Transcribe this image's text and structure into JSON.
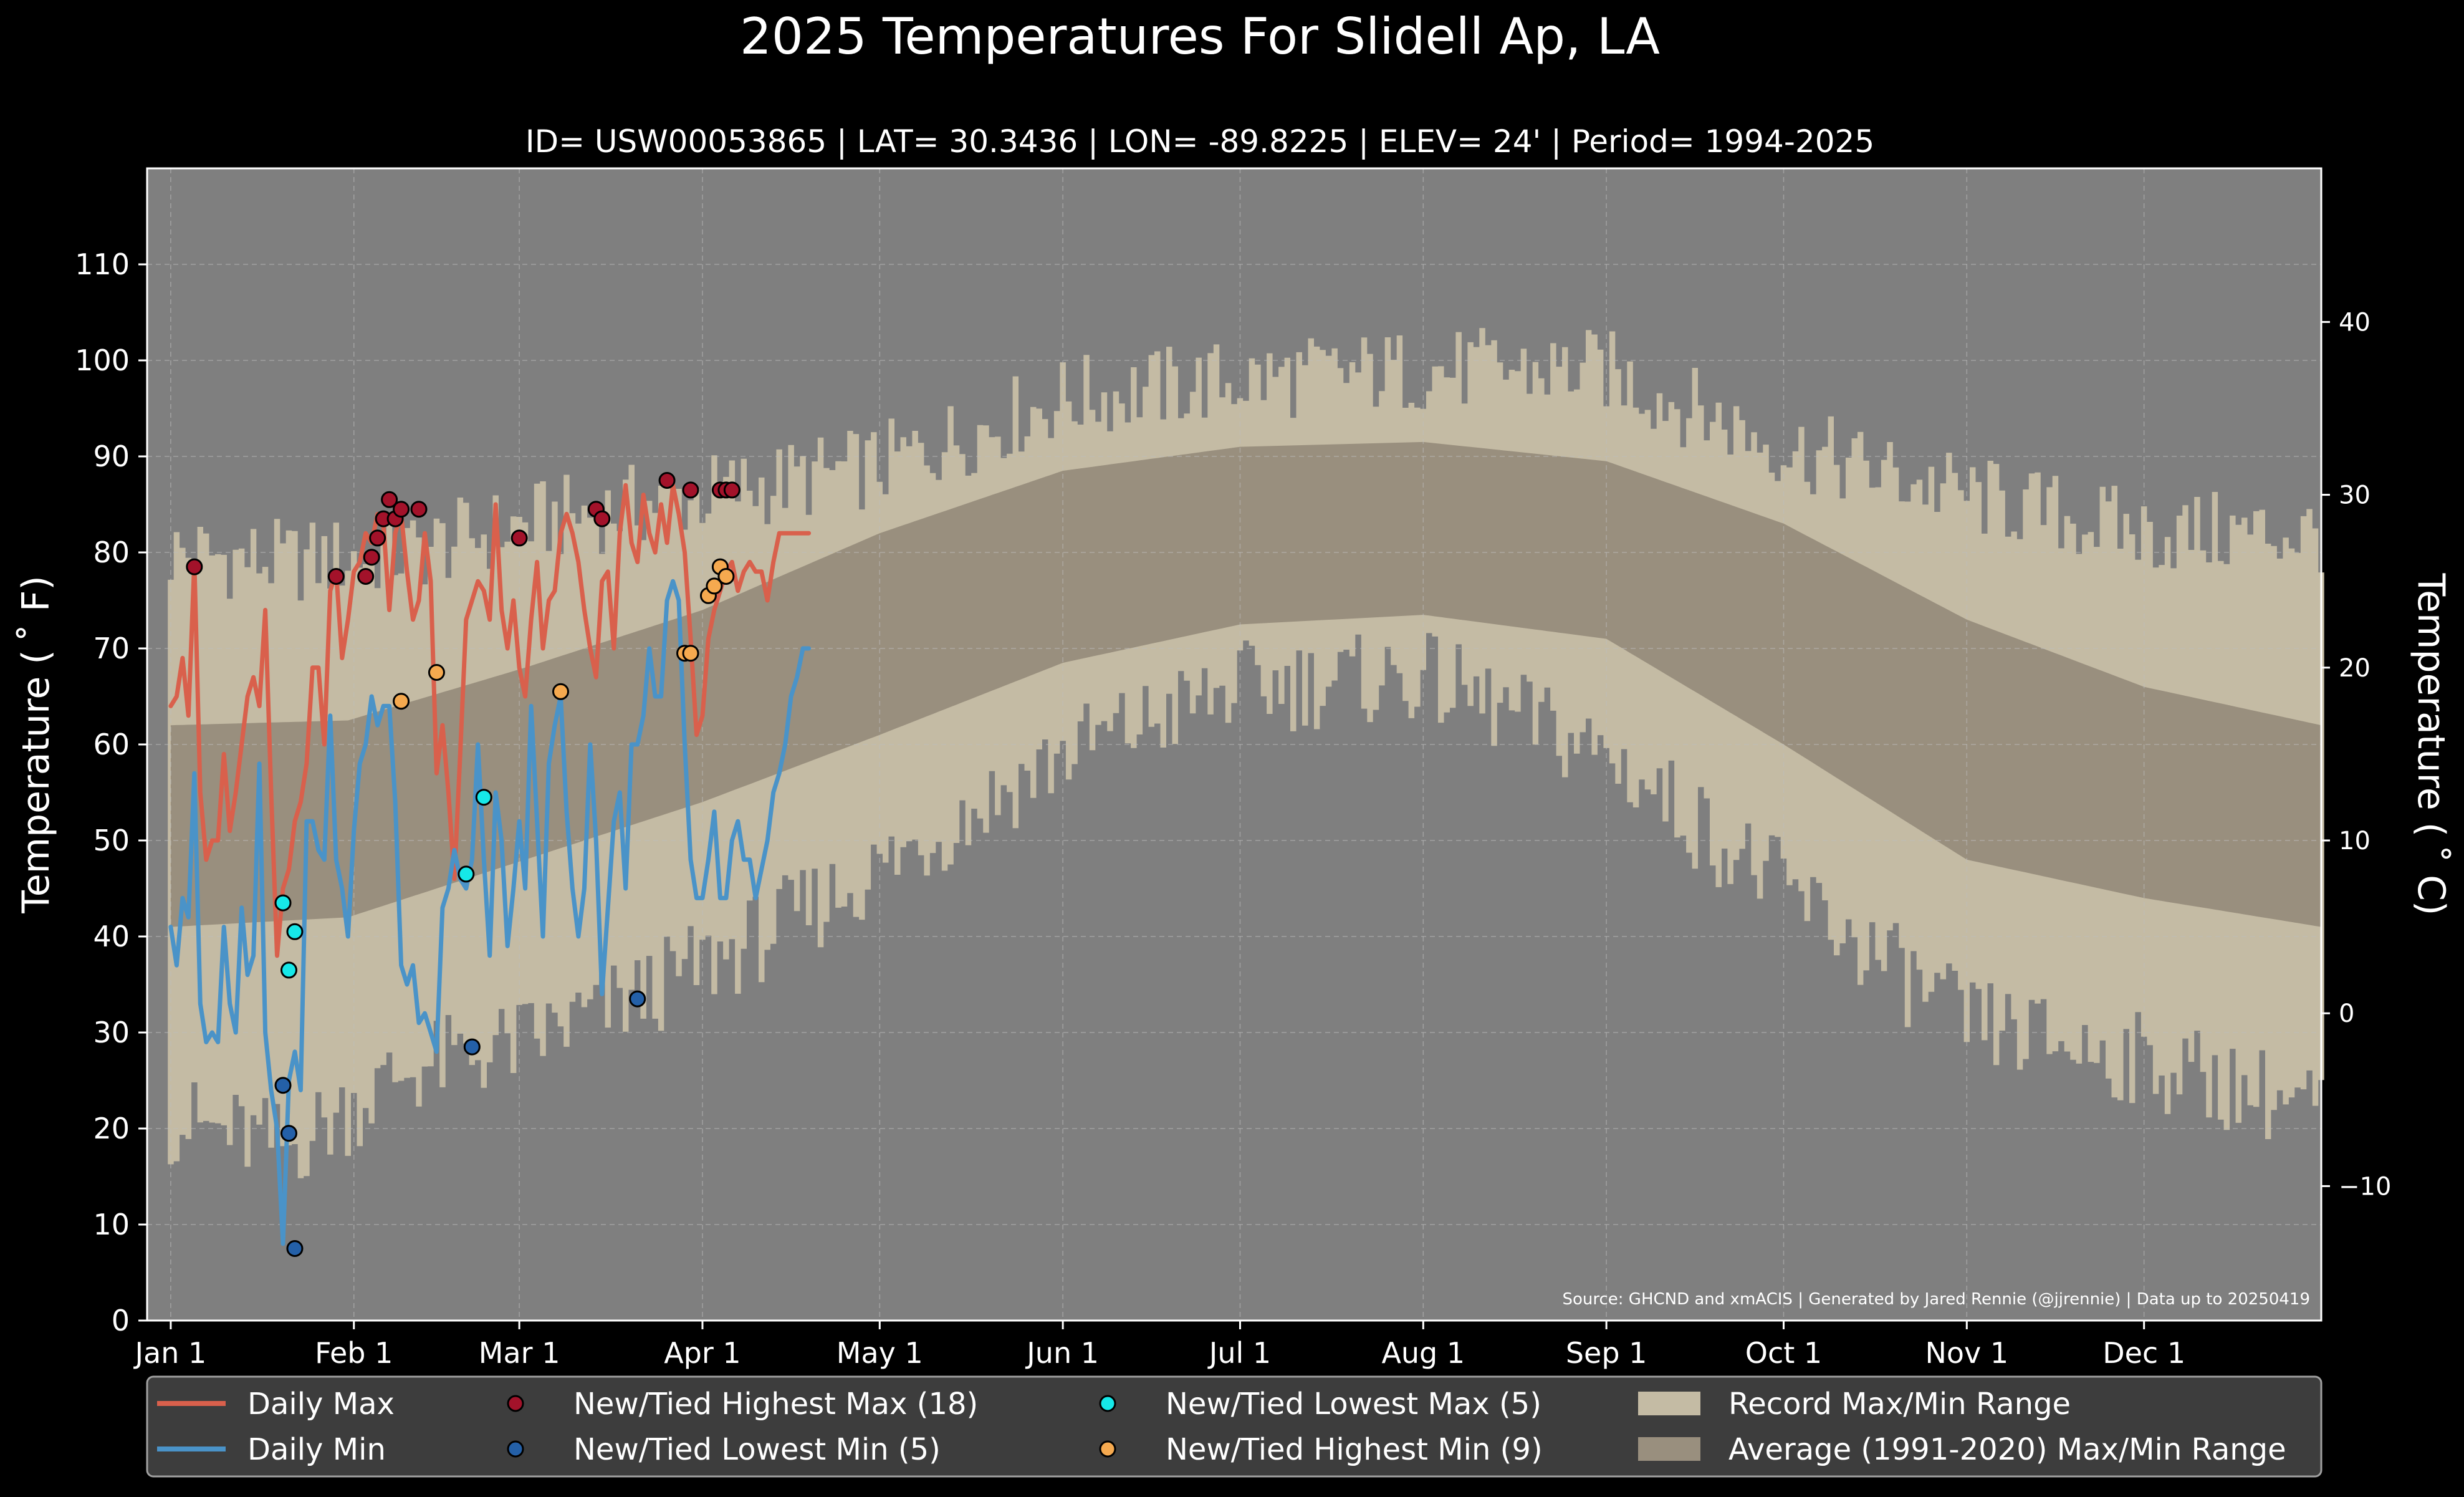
{
  "chart_data": {
    "type": "area",
    "title": "2025 Temperatures For Slidell Ap, LA",
    "subtitle": "ID= USW00053865 | LAT= 30.3436 | LON= -89.8225 | ELEV= 24' | Period= 1994-2025",
    "ylabel": "Temperature ($^\\circ$F)",
    "ylabel_text": "Temperature ( ˚ F)",
    "y2label_text": "Temperature ( ˚ C)",
    "source": "Source: GHCND and xmACIS | Generated by Jared Rennie (@jjrennie) | Data up to 20250419",
    "ylim": [
      0,
      120
    ],
    "y2lim_c": [
      -17.78,
      48.89
    ],
    "yticks": [
      0,
      10,
      20,
      30,
      40,
      50,
      60,
      70,
      80,
      90,
      100,
      110
    ],
    "y2ticks": [
      -10,
      0,
      10,
      20,
      30,
      40
    ],
    "xlim_day": [
      -4,
      364
    ],
    "xticks": [
      {
        "label": "Jan 1",
        "day": 0
      },
      {
        "label": "Feb 1",
        "day": 31
      },
      {
        "label": "Mar 1",
        "day": 59
      },
      {
        "label": "Apr 1",
        "day": 90
      },
      {
        "label": "May 1",
        "day": 120
      },
      {
        "label": "Jun 1",
        "day": 151
      },
      {
        "label": "Jul 1",
        "day": 181
      },
      {
        "label": "Aug 1",
        "day": 212
      },
      {
        "label": "Sep 1",
        "day": 243
      },
      {
        "label": "Oct 1",
        "day": 273
      },
      {
        "label": "Nov 1",
        "day": 304
      },
      {
        "label": "Dec 1",
        "day": 334
      }
    ],
    "grid": true,
    "legend_placement": "below",
    "legend": [
      {
        "label": "Daily Max",
        "kind": "line",
        "color": "#d9604c"
      },
      {
        "label": "Daily Min",
        "kind": "line",
        "color": "#4a93c8"
      },
      {
        "label": "New/Tied Highest Max (18)",
        "kind": "dot",
        "color": "#a3122a"
      },
      {
        "label": "New/Tied Lowest Min (5)",
        "kind": "dot",
        "color": "#2460a8"
      },
      {
        "label": "New/Tied Lowest Max (5)",
        "kind": "dot",
        "color": "#16e8e8"
      },
      {
        "label": "New/Tied Highest Min (9)",
        "kind": "dot",
        "color": "#f5a94f"
      },
      {
        "label": "Record Max/Min Range",
        "kind": "patch",
        "color": "#c4bba4"
      },
      {
        "label": "Average (1991-2020) Max/Min Range",
        "kind": "patch",
        "color": "#998f7e"
      }
    ],
    "colors": {
      "background": "#000000",
      "plot_bg": "#7f7f7f",
      "record": "#c4bba4",
      "normal": "#998f7e",
      "max_line": "#d9604c",
      "min_line": "#4a93c8",
      "legend_bg": "#3d3d3d",
      "text": "#ffffff"
    },
    "record_keypoints": {
      "max_days": [
        0,
        20,
        40,
        60,
        80,
        100,
        120,
        151,
        181,
        212,
        243,
        250,
        273,
        304,
        334,
        364
      ],
      "max_values": [
        80,
        79,
        80,
        83,
        85,
        87,
        89,
        96,
        98,
        99,
        99,
        97,
        91,
        86,
        82,
        82
      ],
      "min_days": [
        0,
        20,
        40,
        60,
        80,
        100,
        120,
        151,
        181,
        212,
        243,
        273,
        304,
        334,
        364
      ],
      "min_values": [
        21,
        18,
        26,
        29,
        34,
        40,
        47,
        59,
        66,
        67,
        59,
        45,
        31,
        27,
        22
      ]
    },
    "normal_keypoints": {
      "max_days": [
        0,
        30,
        60,
        90,
        120,
        151,
        181,
        212,
        243,
        273,
        304,
        334,
        364
      ],
      "max_values": [
        62,
        62.5,
        68,
        74,
        82,
        88.5,
        91,
        91.5,
        89.5,
        83,
        73,
        66,
        62
      ],
      "min_days": [
        0,
        30,
        60,
        90,
        120,
        151,
        181,
        212,
        243,
        273,
        304,
        334,
        364
      ],
      "min_values": [
        41,
        42,
        48,
        54,
        61,
        68.5,
        72.5,
        73.5,
        71,
        60,
        48,
        44,
        41
      ]
    },
    "series": [
      {
        "name": "Daily Max",
        "days": [
          0,
          1,
          2,
          3,
          4,
          5,
          6,
          7,
          8,
          9,
          10,
          11,
          12,
          13,
          14,
          15,
          16,
          17,
          18,
          19,
          20,
          21,
          22,
          23,
          24,
          25,
          26,
          27,
          28,
          29,
          30,
          31,
          32,
          33,
          34,
          35,
          36,
          37,
          38,
          39,
          40,
          41,
          42,
          43,
          44,
          45,
          46,
          47,
          48,
          49,
          50,
          51,
          52,
          53,
          54,
          55,
          56,
          57,
          58,
          59,
          60,
          61,
          62,
          63,
          64,
          65,
          66,
          67,
          68,
          69,
          70,
          71,
          72,
          73,
          74,
          75,
          76,
          77,
          78,
          79,
          80,
          81,
          82,
          83,
          84,
          85,
          86,
          87,
          88,
          89,
          90,
          91,
          92,
          93,
          94,
          95,
          96,
          97,
          98,
          99,
          100,
          101,
          102,
          103,
          104,
          105,
          106,
          107,
          108
        ],
        "values": [
          64,
          65,
          69,
          63,
          79,
          55,
          48,
          50,
          50,
          59,
          51,
          55,
          60,
          65,
          67,
          64,
          74,
          55,
          38,
          45,
          47,
          52,
          54,
          58,
          68,
          68,
          60,
          76,
          78,
          69,
          73,
          78,
          79,
          82,
          81,
          84,
          83,
          74,
          82,
          84,
          78,
          73,
          75,
          82,
          77,
          57,
          62,
          55,
          46,
          59,
          73,
          75,
          77,
          76,
          73,
          85,
          74,
          70,
          75,
          68,
          65,
          73,
          79,
          70,
          75,
          76,
          82,
          84,
          82,
          79,
          74,
          70,
          67,
          77,
          78,
          70,
          82,
          87,
          81,
          79,
          86,
          82,
          80,
          85,
          81,
          87,
          84,
          80,
          71,
          61,
          63,
          71,
          74,
          76,
          78,
          79,
          76,
          78,
          79,
          78,
          78,
          75,
          79,
          82,
          82,
          82,
          82,
          82,
          82
        ]
      },
      {
        "name": "Daily Min",
        "days": [
          0,
          1,
          2,
          3,
          4,
          5,
          6,
          7,
          8,
          9,
          10,
          11,
          12,
          13,
          14,
          15,
          16,
          17,
          18,
          19,
          20,
          21,
          22,
          23,
          24,
          25,
          26,
          27,
          28,
          29,
          30,
          31,
          32,
          33,
          34,
          35,
          36,
          37,
          38,
          39,
          40,
          41,
          42,
          43,
          44,
          45,
          46,
          47,
          48,
          49,
          50,
          51,
          52,
          53,
          54,
          55,
          56,
          57,
          58,
          59,
          60,
          61,
          62,
          63,
          64,
          65,
          66,
          67,
          68,
          69,
          70,
          71,
          72,
          73,
          74,
          75,
          76,
          77,
          78,
          79,
          80,
          81,
          82,
          83,
          84,
          85,
          86,
          87,
          88,
          89,
          90,
          91,
          92,
          93,
          94,
          95,
          96,
          97,
          98,
          99,
          100,
          101,
          102,
          103,
          104,
          105,
          106,
          107,
          108
        ],
        "values": [
          41,
          37,
          44,
          42,
          57,
          33,
          29,
          30,
          29,
          41,
          33,
          30,
          43,
          36,
          38,
          58,
          30,
          24,
          20,
          8,
          25,
          28,
          24,
          52,
          52,
          49,
          48,
          63,
          48,
          45,
          40,
          51,
          58,
          60,
          65,
          62,
          64,
          64,
          54,
          37,
          35,
          37,
          31,
          32,
          30,
          28,
          43,
          45,
          49,
          46,
          45,
          48,
          60,
          48,
          38,
          55,
          50,
          39,
          45,
          52,
          45,
          64,
          52,
          40,
          58,
          62,
          65,
          53,
          45,
          40,
          45,
          60,
          50,
          34,
          43,
          52,
          55,
          45,
          60,
          60,
          63,
          70,
          65,
          65,
          75,
          77,
          75,
          60,
          48,
          44,
          44,
          48,
          53,
          44,
          44,
          50,
          52,
          48,
          48,
          44,
          47,
          50,
          55,
          57,
          60,
          65,
          67,
          70,
          70
        ]
      }
    ],
    "record_highest_max": {
      "days": [
        4,
        28,
        33,
        34,
        35,
        36,
        37,
        38,
        39,
        42,
        59,
        72,
        73,
        84,
        88,
        93,
        94,
        95
      ],
      "values": [
        78.5,
        77.5,
        77.5,
        79.5,
        81.5,
        83.5,
        85.5,
        83.5,
        84.5,
        84.5,
        81.5,
        84.5,
        83.5,
        87.5,
        86.5,
        86.5,
        86.5,
        86.5
      ]
    },
    "record_lowest_min": {
      "days": [
        19,
        20,
        21,
        51,
        79
      ],
      "values": [
        24.5,
        19.5,
        7.5,
        28.5,
        33.5
      ]
    },
    "record_lowest_max": {
      "days": [
        19,
        20,
        21,
        50,
        53
      ],
      "values": [
        43.5,
        36.5,
        40.5,
        46.5,
        54.5
      ]
    },
    "record_highest_min": {
      "days": [
        39,
        45,
        66,
        87,
        88,
        91,
        92,
        93,
        94
      ],
      "values": [
        64.5,
        67.5,
        65.5,
        69.5,
        69.5,
        75.5,
        76.5,
        78.5,
        77.5
      ]
    }
  }
}
